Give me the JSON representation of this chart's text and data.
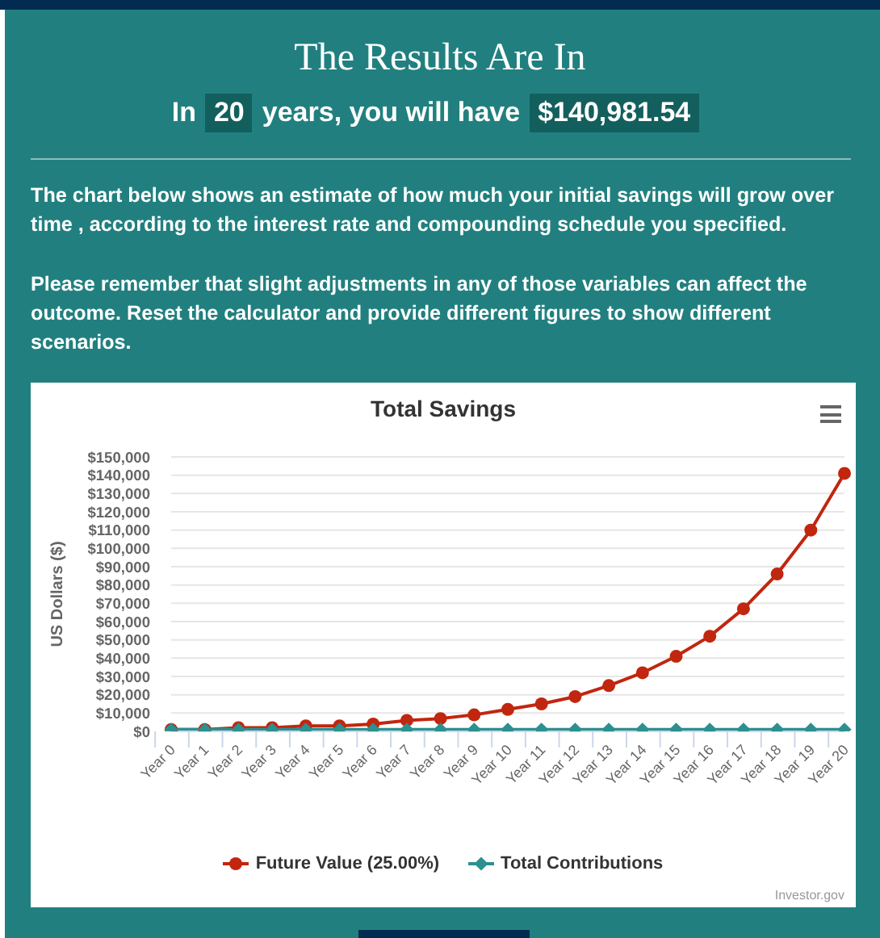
{
  "chart_data": {
    "type": "line",
    "title": "Total Savings",
    "ylabel": "US Dollars ($)",
    "categories": [
      "Year 0",
      "Year 1",
      "Year 2",
      "Year 3",
      "Year 4",
      "Year 5",
      "Year 6",
      "Year 7",
      "Year 8",
      "Year 9",
      "Year 10",
      "Year 11",
      "Year 12",
      "Year 13",
      "Year 14",
      "Year 15",
      "Year 16",
      "Year 17",
      "Year 18",
      "Year 19",
      "Year 20"
    ],
    "series": [
      {
        "name": "Future Value (25.00%)",
        "color": "#c1260f",
        "marker": "circle",
        "values": [
          1000,
          1000,
          2000,
          2000,
          3000,
          3000,
          4000,
          6000,
          7000,
          9000,
          12000,
          15000,
          19000,
          25000,
          32000,
          41000,
          52000,
          67000,
          86000,
          110000,
          141000
        ]
      },
      {
        "name": "Total Contributions",
        "color": "#2b908f",
        "marker": "diamond",
        "values": [
          1000,
          1000,
          1000,
          1000,
          1000,
          1000,
          1000,
          1000,
          1000,
          1000,
          1000,
          1000,
          1000,
          1000,
          1000,
          1000,
          1000,
          1000,
          1000,
          1000,
          1000
        ]
      }
    ],
    "ylim": [
      0,
      150000
    ],
    "yticks": [
      {
        "value": 0,
        "label": "$0"
      },
      {
        "value": 10000,
        "label": "$10,000"
      },
      {
        "value": 20000,
        "label": "$20,000"
      },
      {
        "value": 30000,
        "label": "$30,000"
      },
      {
        "value": 40000,
        "label": "$40,000"
      },
      {
        "value": 50000,
        "label": "$50,000"
      },
      {
        "value": 60000,
        "label": "$60,000"
      },
      {
        "value": 70000,
        "label": "$70,000"
      },
      {
        "value": 80000,
        "label": "$80,000"
      },
      {
        "value": 90000,
        "label": "$90,000"
      },
      {
        "value": 100000,
        "label": "$100,000"
      },
      {
        "value": 110000,
        "label": "$110,000"
      },
      {
        "value": 120000,
        "label": "$120,000"
      },
      {
        "value": 130000,
        "label": "$130,000"
      },
      {
        "value": 140000,
        "label": "$140,000"
      },
      {
        "value": 150000,
        "label": "$150,000"
      }
    ],
    "grid": "y",
    "legend": "bottom",
    "annotations": [
      "The Results Are In",
      "In",
      "20",
      "years, you will have",
      "$140,981.54",
      "The chart below shows an estimate of how much your initial savings will grow over time , according to the interest rate and compounding schedule you specified.",
      "Please remember that slight adjustments in any of those variables can affect the outcome. Reset the calculator and provide different figures to show different scenarios.",
      "Investor.gov"
    ]
  }
}
